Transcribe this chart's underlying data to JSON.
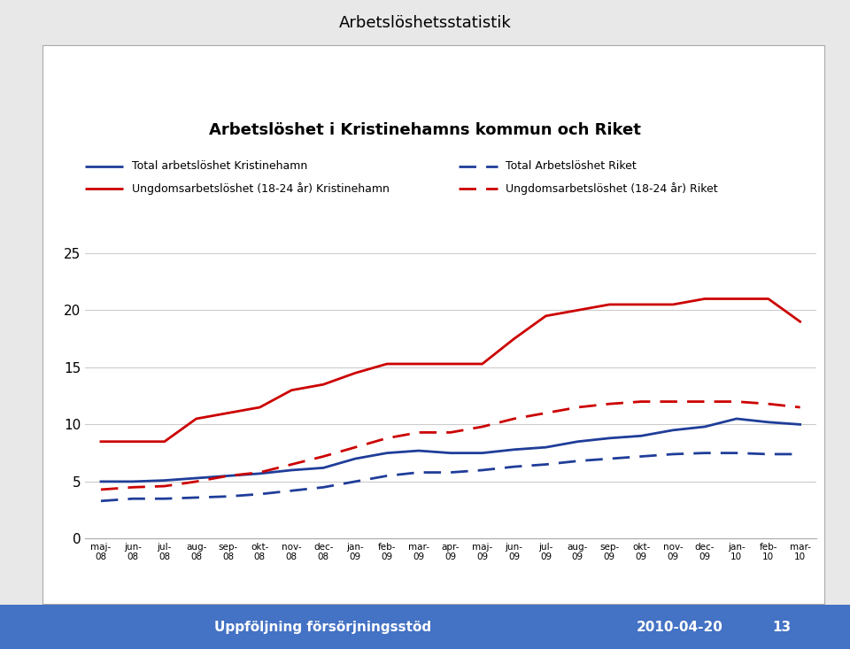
{
  "title_top": "Arbetslöshetsstatistik",
  "title_chart": "Arbetslöshet i Kristinehamns kommun och Riket",
  "x_labels": [
    "maj-\n08",
    "jun-\n08",
    "jul-\n08",
    "aug-\n08",
    "sep-\n08",
    "okt-\n08",
    "nov-\n08",
    "dec-\n08",
    "jan-\n09",
    "feb-\n09",
    "mar-\n09",
    "apr-\n09",
    "maj-\n09",
    "jun-\n09",
    "jul-\n09",
    "aug-\n09",
    "sep-\n09",
    "okt-\n09",
    "nov-\n09",
    "dec-\n09",
    "jan-\n10",
    "feb-\n10",
    "mar-\n10"
  ],
  "total_kristinehamn": [
    5.0,
    5.0,
    5.1,
    5.3,
    5.5,
    5.7,
    6.0,
    6.2,
    7.0,
    7.5,
    7.7,
    7.5,
    7.5,
    7.8,
    8.0,
    8.5,
    8.8,
    9.0,
    9.5,
    9.8,
    10.5,
    10.2,
    10.0
  ],
  "total_riket": [
    3.3,
    3.5,
    3.5,
    3.6,
    3.7,
    3.9,
    4.2,
    4.5,
    5.0,
    5.5,
    5.8,
    5.8,
    6.0,
    6.3,
    6.5,
    6.8,
    7.0,
    7.2,
    7.4,
    7.5,
    7.5,
    7.4,
    7.4
  ],
  "ungdom_kristinehamn": [
    8.5,
    8.5,
    8.5,
    10.5,
    11.0,
    11.5,
    13.0,
    13.5,
    14.5,
    15.3,
    15.3,
    15.3,
    15.3,
    17.5,
    19.5,
    20.0,
    20.5,
    20.5,
    20.5,
    21.0,
    21.0,
    21.0,
    19.0
  ],
  "ungdom_riket": [
    4.3,
    4.5,
    4.6,
    5.0,
    5.5,
    5.8,
    6.5,
    7.2,
    8.0,
    8.8,
    9.3,
    9.3,
    9.8,
    10.5,
    11.0,
    11.5,
    11.8,
    12.0,
    12.0,
    12.0,
    12.0,
    11.8,
    11.5
  ],
  "label_total_k": "Total arbetslöshet Kristinehamn",
  "label_total_r": "Total Arbetslöshet Riket",
  "label_ungdom_k": "Ungdomsarbetslöshet (18-24 år) Kristinehamn",
  "label_ungdom_r": "Ungdomsarbetslöshet (18-24 år) Riket",
  "color_blue": "#1F3D99",
  "color_red": "#CC0000",
  "ylim": [
    0,
    25
  ],
  "yticks": [
    0,
    5,
    10,
    15,
    20,
    25
  ],
  "footer_left": "Uppföljning försörjningsstöd",
  "footer_right": "2010-04-20",
  "footer_page": "13",
  "footer_bg": "#4472C4",
  "chart_bg": "#FFFFFF",
  "outer_bg": "#E8E8E8"
}
